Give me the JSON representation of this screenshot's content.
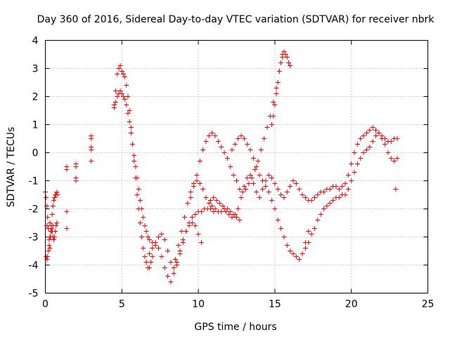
{
  "chart_data": {
    "type": "scatter",
    "title": "Day 360 of 2016, Sidereal Day-to-day VTEC variation (SDTVAR) for receiver nbrk",
    "xlabel": "GPS time / hours",
    "ylabel": "SDTVAR / TECUs",
    "xlim": [
      0,
      25
    ],
    "ylim": [
      -5,
      4
    ],
    "xticks": [
      0,
      5,
      10,
      15,
      20,
      25
    ],
    "yticks": [
      -5,
      -4,
      -3,
      -2,
      -1,
      0,
      1,
      2,
      3,
      4
    ],
    "xtick_labels": [
      "0",
      "5",
      "10",
      "15",
      "20",
      "25"
    ],
    "ytick_labels": [
      "-5",
      "-4",
      "-3",
      "-2",
      "-1",
      "0",
      "1",
      "2",
      "3",
      "4"
    ],
    "grid": true,
    "marker": "plus",
    "color": "#ff0000",
    "series": [
      {
        "name": "nbrk",
        "x": [
          0.0,
          0.05,
          0.1,
          0.15,
          0.2,
          0.25,
          0.3,
          0.35,
          0.4,
          0.45,
          0.5,
          0.55,
          0.6,
          0.65,
          0.7,
          0.75,
          0.8,
          0.05,
          0.1,
          0.15,
          0.2,
          0.25,
          0.3,
          0.35,
          0.4,
          0.45,
          0.5,
          0.55,
          0.6,
          0.65,
          0.7,
          0.75,
          0.1,
          0.2,
          0.3,
          0.4,
          0.5,
          1.4,
          1.4,
          1.4,
          1.4,
          2.0,
          2.0,
          2.0,
          2.0,
          3.0,
          3.0,
          3.0,
          3.0,
          3.0,
          4.5,
          4.6,
          4.7,
          4.8,
          4.9,
          5.0,
          5.1,
          5.2,
          5.3,
          5.4,
          5.5,
          5.6,
          5.7,
          5.8,
          5.9,
          6.0,
          6.1,
          6.2,
          6.3,
          6.4,
          6.5,
          6.6,
          6.7,
          6.8,
          6.9,
          7.0,
          4.5,
          4.6,
          4.7,
          4.8,
          4.9,
          5.0,
          5.1,
          5.2,
          5.3,
          5.4,
          5.5,
          5.6,
          5.7,
          5.8,
          5.9,
          6.0,
          6.1,
          6.2,
          6.3,
          6.4,
          6.5,
          6.6,
          6.7,
          6.8,
          7.0,
          7.2,
          7.4,
          7.6,
          7.8,
          8.0,
          8.2,
          8.4,
          8.6,
          8.8,
          9.0,
          9.2,
          9.4,
          9.6,
          9.8,
          10.0,
          10.2,
          10.4,
          10.6,
          10.8,
          11.0,
          6.6,
          6.8,
          7.0,
          7.2,
          7.4,
          7.6,
          7.8,
          8.0,
          8.2,
          8.4,
          8.6,
          8.8,
          9.0,
          9.2,
          9.4,
          9.6,
          9.8,
          10.0,
          10.2,
          8.5,
          8.7,
          8.9,
          9.1,
          9.3,
          9.5,
          9.7,
          9.9,
          10.1,
          10.3,
          10.5,
          10.7,
          10.9,
          11.1,
          11.3,
          11.5,
          11.7,
          11.9,
          12.1,
          12.3,
          12.5,
          12.7,
          9.5,
          9.7,
          9.9,
          10.1,
          10.3,
          10.5,
          10.7,
          10.9,
          11.1,
          11.3,
          11.5,
          11.7,
          11.9,
          12.1,
          12.3,
          12.5,
          12.7,
          12.9,
          13.1,
          13.3,
          13.5,
          13.7,
          13.9,
          14.1,
          14.3,
          14.5,
          14.7,
          14.9,
          15.1,
          15.3,
          15.5,
          10.8,
          11.0,
          11.2,
          11.4,
          11.6,
          11.8,
          12.0,
          12.2,
          12.4,
          12.6,
          12.8,
          13.0,
          13.2,
          13.4,
          13.6,
          13.8,
          12.2,
          12.4,
          12.6,
          12.8,
          13.0,
          13.2,
          13.4,
          13.6,
          13.8,
          14.0,
          14.2,
          14.4,
          14.6,
          14.8,
          15.0,
          15.2,
          15.4,
          15.6,
          15.8,
          16.0,
          16.2,
          16.4,
          16.6,
          16.8,
          17.0,
          17.2,
          14.0,
          14.2,
          14.4,
          14.6,
          14.8,
          15.0,
          15.2,
          15.4,
          15.6,
          15.8,
          16.0,
          16.2,
          16.4,
          16.6,
          16.8,
          17.0,
          17.2,
          17.4,
          17.6,
          17.8,
          18.0,
          18.2,
          18.4,
          18.6,
          18.8,
          19.0,
          19.2,
          19.4,
          19.6,
          19.8,
          20.0,
          20.2,
          20.4,
          20.6,
          20.8,
          21.0,
          21.2,
          21.4,
          21.6,
          21.8,
          22.0,
          22.2,
          22.4,
          22.6,
          22.8,
          23.0,
          17.0,
          17.2,
          17.4,
          17.6,
          17.8,
          18.0,
          18.2,
          18.4,
          18.6,
          18.8,
          19.0,
          19.2,
          19.4,
          19.6,
          19.8,
          20.0,
          20.2,
          20.4,
          20.6,
          20.8,
          21.0,
          21.2,
          21.4,
          21.6,
          21.8,
          22.0,
          22.2,
          22.4,
          22.6,
          22.8,
          23.0,
          14.8,
          14.9,
          15.0,
          15.1,
          15.2,
          15.3,
          15.4,
          15.5,
          15.6,
          15.7,
          15.8,
          15.9,
          16.0,
          22.9
        ],
        "y": [
          -1.4,
          -1.6,
          -1.9,
          -2.3,
          -2.7,
          -3.1,
          -3.4,
          -3.0,
          -2.6,
          -2.2,
          -1.9,
          -1.7,
          -1.6,
          -1.5,
          -1.5,
          -1.4,
          -1.5,
          -3.7,
          -3.8,
          -3.7,
          -3.5,
          -3.3,
          -3.0,
          -2.8,
          -2.7,
          -2.8,
          -3.0,
          -3.1,
          -3.0,
          -2.8,
          -2.6,
          -2.5,
          -2.6,
          -2.7,
          -2.5,
          -2.8,
          -2.6,
          -0.6,
          -0.5,
          -2.1,
          -2.7,
          -0.4,
          -0.5,
          -0.9,
          -1.0,
          -0.3,
          0.1,
          0.2,
          0.5,
          0.6,
          1.7,
          2.2,
          2.8,
          3.0,
          3.1,
          2.9,
          2.8,
          2.7,
          2.4,
          2.0,
          1.5,
          0.9,
          0.3,
          -0.3,
          -0.9,
          -1.5,
          -2.0,
          -2.5,
          -3.0,
          -3.4,
          -3.7,
          -3.9,
          -4.1,
          -4.1,
          -3.9,
          -3.7,
          1.6,
          1.8,
          2.0,
          2.1,
          2.2,
          2.1,
          2.0,
          1.9,
          1.7,
          1.4,
          1.1,
          0.7,
          0.3,
          -0.1,
          -0.5,
          -0.9,
          -1.3,
          -1.7,
          -2.0,
          -2.3,
          -2.6,
          -2.8,
          -3.0,
          -3.1,
          -3.2,
          -3.2,
          -3.0,
          -2.9,
          -3.1,
          -3.5,
          -3.9,
          -4.1,
          -4.0,
          -3.6,
          -3.2,
          -2.8,
          -2.5,
          -2.3,
          -2.2,
          -2.1,
          -2.1,
          -2.0,
          -2.0,
          -2.0,
          -2.1,
          -3.9,
          -3.6,
          -3.4,
          -3.3,
          -3.4,
          -3.7,
          -4.1,
          -4.4,
          -4.6,
          -4.3,
          -3.9,
          -3.5,
          -3.1,
          -2.8,
          -2.6,
          -2.5,
          -2.6,
          -2.9,
          -3.2,
          -3.8,
          -3.3,
          -2.8,
          -2.3,
          -1.8,
          -1.4,
          -1.1,
          -1.0,
          -1.1,
          -1.3,
          -1.6,
          -1.8,
          -1.9,
          -2.0,
          -2.1,
          -2.1,
          -2.0,
          -2.0,
          -2.1,
          -2.2,
          -2.3,
          -2.4,
          -1.6,
          -1.2,
          -0.8,
          -0.3,
          0.1,
          0.4,
          0.6,
          0.7,
          0.6,
          0.4,
          0.2,
          0.0,
          -0.2,
          -0.5,
          -0.8,
          -1.0,
          -1.3,
          -1.4,
          -1.3,
          -1.1,
          -0.9,
          -0.6,
          -0.3,
          0.1,
          0.5,
          0.9,
          1.3,
          1.8,
          2.3,
          2.9,
          3.4,
          -1.7,
          -1.6,
          -1.7,
          -1.8,
          -1.9,
          -2.1,
          -2.2,
          -2.3,
          -2.2,
          -2.0,
          -1.6,
          -1.2,
          -0.9,
          -0.8,
          -1.1,
          -1.4,
          0.1,
          0.3,
          0.5,
          0.6,
          0.5,
          0.3,
          0.1,
          -0.2,
          -0.5,
          -0.8,
          -1.0,
          -1.2,
          -1.4,
          -1.7,
          -2.0,
          -2.4,
          -2.7,
          -3.0,
          -3.3,
          -3.5,
          -3.6,
          -3.7,
          -3.8,
          -3.6,
          -3.2,
          -2.8,
          -1.6,
          -1.3,
          -1.0,
          -0.8,
          -0.9,
          -1.1,
          -1.3,
          -1.5,
          -1.6,
          -1.4,
          -1.2,
          -1.0,
          -1.1,
          -1.3,
          -1.5,
          -1.6,
          -1.7,
          -1.7,
          -1.6,
          -1.5,
          -1.4,
          -1.4,
          -1.3,
          -1.3,
          -1.2,
          -1.2,
          -1.3,
          -1.2,
          -1.1,
          -0.8,
          -0.4,
          0.0,
          0.3,
          0.5,
          0.6,
          0.7,
          0.8,
          0.9,
          0.8,
          0.7,
          0.6,
          0.5,
          0.4,
          0.4,
          0.5,
          0.5,
          -3.4,
          -3.2,
          -2.9,
          -2.7,
          -2.4,
          -2.2,
          -2.0,
          -1.9,
          -1.8,
          -1.7,
          -1.6,
          -1.6,
          -1.5,
          -1.5,
          -1.3,
          -1.0,
          -0.7,
          -0.4,
          -0.2,
          0.0,
          0.1,
          0.2,
          0.4,
          0.6,
          0.7,
          0.5,
          0.3,
          0.0,
          -0.2,
          -0.3,
          -0.2,
          1.0,
          1.3,
          1.7,
          2.1,
          2.5,
          2.9,
          3.2,
          3.5,
          3.6,
          3.5,
          3.4,
          3.2,
          3.1,
          -1.3
        ]
      }
    ]
  }
}
